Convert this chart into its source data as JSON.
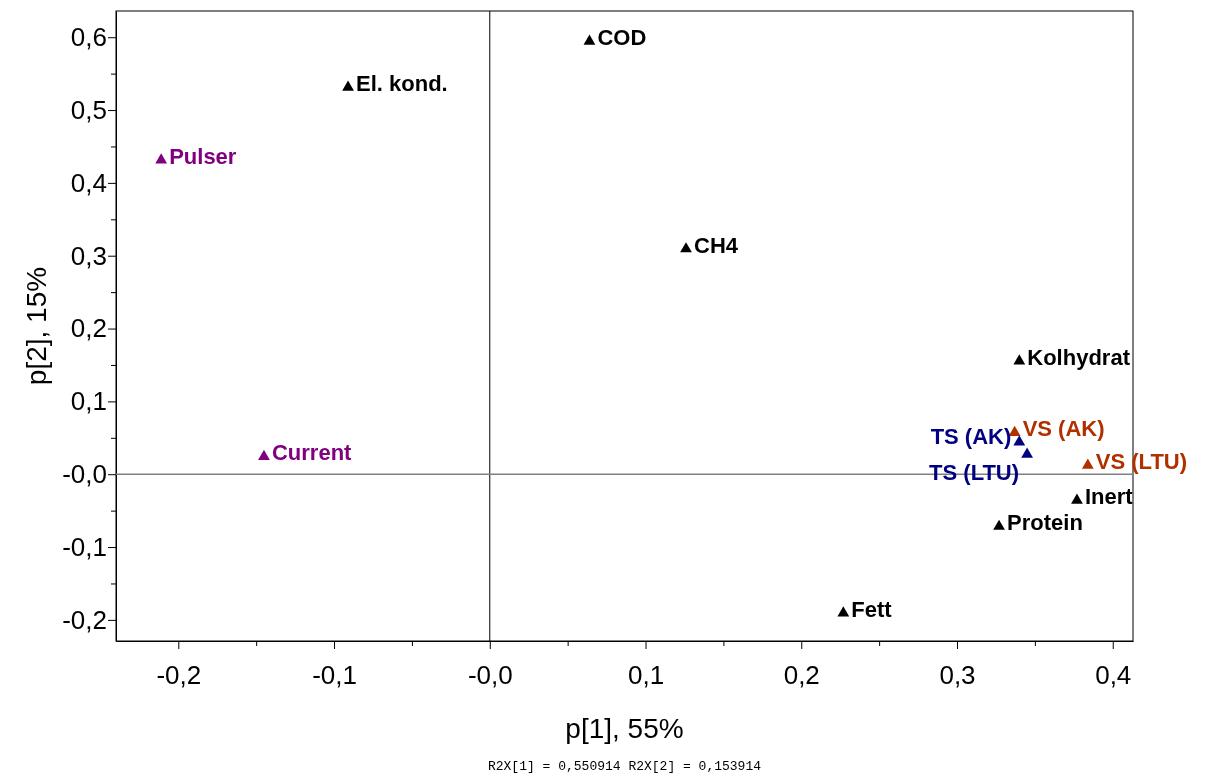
{
  "chart_data": {
    "type": "scatter",
    "xlabel": "p[1],  55%",
    "ylabel": "p[2],  15%",
    "marker": "triangle",
    "grid": false,
    "xlim": [
      -0.24,
      0.413
    ],
    "ylim": [
      -0.229,
      0.636
    ],
    "xticks": [
      {
        "value": -0.2,
        "label": "-0,2"
      },
      {
        "value": -0.15,
        "label": null
      },
      {
        "value": -0.1,
        "label": "-0,1"
      },
      {
        "value": -0.05,
        "label": null
      },
      {
        "value": 0,
        "label": "-0,0"
      },
      {
        "value": 0.05,
        "label": null
      },
      {
        "value": 0.1,
        "label": "0,1"
      },
      {
        "value": 0.15,
        "label": null
      },
      {
        "value": 0.2,
        "label": "0,2"
      },
      {
        "value": 0.25,
        "label": null
      },
      {
        "value": 0.3,
        "label": "0,3"
      },
      {
        "value": 0.35,
        "label": null
      },
      {
        "value": 0.4,
        "label": "0,4"
      }
    ],
    "yticks": [
      {
        "value": -0.2,
        "label": "-0,2"
      },
      {
        "value": -0.15,
        "label": null
      },
      {
        "value": -0.1,
        "label": "-0,1"
      },
      {
        "value": -0.05,
        "label": null
      },
      {
        "value": 0,
        "label": "-0,0"
      },
      {
        "value": 0.05,
        "label": null
      },
      {
        "value": 0.1,
        "label": "0,1"
      },
      {
        "value": 0.15,
        "label": null
      },
      {
        "value": 0.2,
        "label": "0,2"
      },
      {
        "value": 0.25,
        "label": null
      },
      {
        "value": 0.3,
        "label": "0,3"
      },
      {
        "value": 0.35,
        "label": null
      },
      {
        "value": 0.4,
        "label": "0,4"
      },
      {
        "value": 0.45,
        "label": null
      },
      {
        "value": 0.5,
        "label": "0,5"
      },
      {
        "value": 0.55,
        "label": null
      },
      {
        "value": 0.6,
        "label": "0,6"
      }
    ],
    "ref_lines": [
      {
        "axis": "x",
        "value": 0,
        "color": "#000000"
      },
      {
        "axis": "y",
        "value": 0,
        "color": "#808080"
      }
    ],
    "annotations": [
      "R2X[1] = 0,550914 R2X[2] = 0,153914"
    ],
    "series": [
      {
        "name": "COD",
        "color": "#000000",
        "x": [
          0.064
        ],
        "values": [
          0.597
        ]
      },
      {
        "name": "El. kond.",
        "color": "#000000",
        "x": [
          -0.091
        ],
        "values": [
          0.534
        ]
      },
      {
        "name": "Pulser",
        "color": "#800080",
        "x": [
          -0.211
        ],
        "values": [
          0.434
        ]
      },
      {
        "name": "CH4",
        "color": "#000000",
        "x": [
          0.126
        ],
        "values": [
          0.312
        ]
      },
      {
        "name": "Kolhydrat",
        "color": "#000000",
        "x": [
          0.34
        ],
        "values": [
          0.158
        ]
      },
      {
        "name": "Current",
        "color": "#800080",
        "x": [
          -0.145
        ],
        "values": [
          0.027
        ]
      },
      {
        "name": "VS (AK)",
        "color": "#b03000",
        "x": [
          0.337
        ],
        "values": [
          0.06
        ]
      },
      {
        "name": "VS (LTU)",
        "color": "#b03000",
        "x": [
          0.384
        ],
        "values": [
          0.015
        ]
      },
      {
        "name": "TS (AK)",
        "color": "#000080",
        "x": [
          0.34
        ],
        "values": [
          0.047
        ]
      },
      {
        "name": "TS (LTU)",
        "color": "#000080",
        "x": [
          0.345
        ],
        "values": [
          0.03
        ]
      },
      {
        "name": "Inert",
        "color": "#000000",
        "x": [
          0.377
        ],
        "values": [
          -0.033
        ]
      },
      {
        "name": "Protein",
        "color": "#000000",
        "x": [
          0.327
        ],
        "values": [
          -0.069
        ]
      },
      {
        "name": "Fett",
        "color": "#000000",
        "x": [
          0.227
        ],
        "values": [
          -0.188
        ]
      }
    ]
  }
}
